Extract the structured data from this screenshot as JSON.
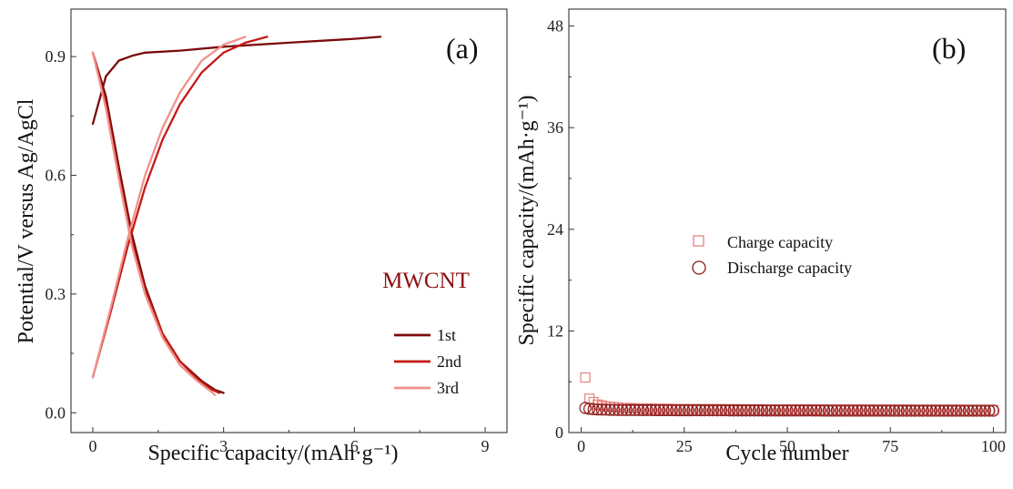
{
  "figure": {
    "panels": [
      "(a)",
      "(b)"
    ]
  },
  "colors": {
    "cycle_1": "#7a0b0b",
    "cycle_2": "#c41a14",
    "cycle_3": "#f0908a",
    "charge": "#e8837e",
    "discharge": "#8b1b1b",
    "annotation": "#8b1010",
    "axis": "#333333"
  },
  "chart_data": [
    {
      "type": "line",
      "panel_label": "(a)",
      "title": "",
      "xlabel": "Specific capacity/(mAh·g⁻¹)",
      "ylabel": "Potential/V versus Ag/AgCl",
      "xlim": [
        -0.5,
        9.5
      ],
      "ylim": [
        -0.05,
        1.02
      ],
      "xticks": [
        0,
        3,
        6,
        9
      ],
      "yticks": [
        0.0,
        0.3,
        0.6,
        0.9
      ],
      "xtick_labels": [
        "0",
        "3",
        "6",
        "9"
      ],
      "ytick_labels": [
        "0.0",
        "0.3",
        "0.6",
        "0.9"
      ],
      "grid": false,
      "annotation": "MWCNT",
      "legend_position": "lower-right",
      "series": [
        {
          "name": "1st",
          "color_key": "cycle_1",
          "segments": [
            {
              "x": [
                0.0,
                0.3,
                0.6,
                0.9,
                1.2,
                2.0,
                3.0,
                4.5,
                6.0,
                6.6
              ],
              "y": [
                0.73,
                0.85,
                0.89,
                0.902,
                0.91,
                0.915,
                0.925,
                0.935,
                0.945,
                0.95
              ]
            },
            {
              "x": [
                0.0,
                0.3,
                0.6,
                0.9,
                1.2,
                1.6,
                2.0,
                2.5,
                2.8,
                3.0
              ],
              "y": [
                0.91,
                0.8,
                0.62,
                0.45,
                0.32,
                0.2,
                0.13,
                0.08,
                0.058,
                0.05
              ]
            }
          ]
        },
        {
          "name": "2nd",
          "color_key": "cycle_2",
          "segments": [
            {
              "x": [
                0.0,
                0.4,
                0.8,
                1.2,
                1.6,
                2.0,
                2.5,
                3.0,
                3.5,
                4.0
              ],
              "y": [
                0.09,
                0.25,
                0.42,
                0.57,
                0.69,
                0.78,
                0.86,
                0.91,
                0.935,
                0.95
              ]
            },
            {
              "x": [
                0.0,
                0.3,
                0.6,
                0.9,
                1.2,
                1.6,
                2.0,
                2.4,
                2.7,
                2.9
              ],
              "y": [
                0.91,
                0.78,
                0.6,
                0.43,
                0.31,
                0.2,
                0.13,
                0.085,
                0.06,
                0.05
              ]
            }
          ]
        },
        {
          "name": "3rd",
          "color_key": "cycle_3",
          "segments": [
            {
              "x": [
                0.0,
                0.4,
                0.8,
                1.2,
                1.6,
                2.0,
                2.5,
                3.0,
                3.5
              ],
              "y": [
                0.09,
                0.26,
                0.44,
                0.6,
                0.72,
                0.81,
                0.89,
                0.93,
                0.95
              ]
            },
            {
              "x": [
                0.0,
                0.3,
                0.6,
                0.9,
                1.2,
                1.6,
                2.0,
                2.4,
                2.7,
                2.8
              ],
              "y": [
                0.91,
                0.77,
                0.59,
                0.42,
                0.3,
                0.19,
                0.12,
                0.08,
                0.055,
                0.045
              ]
            }
          ]
        }
      ]
    },
    {
      "type": "scatter",
      "panel_label": "(b)",
      "title": "",
      "xlabel": "Cycle number",
      "ylabel": "Specific capacity/(mAh·g⁻¹)",
      "xlim": [
        -3,
        103
      ],
      "ylim": [
        0,
        50
      ],
      "xticks": [
        0,
        25,
        50,
        75,
        100
      ],
      "yticks": [
        0,
        12,
        24,
        36,
        48
      ],
      "xtick_labels": [
        "0",
        "25",
        "50",
        "75",
        "100"
      ],
      "ytick_labels": [
        "0",
        "12",
        "24",
        "36",
        "48"
      ],
      "grid": false,
      "legend_position": "center",
      "series": [
        {
          "name": "Charge capacity",
          "marker": "square",
          "color_key": "charge",
          "x_start": 1,
          "x_step": 1,
          "values": [
            6.5,
            4.0,
            3.6,
            3.3,
            3.2,
            3.1,
            3.05,
            3.0,
            2.95,
            2.9,
            2.9,
            2.88,
            2.86,
            2.85,
            2.84,
            2.83,
            2.82,
            2.81,
            2.8,
            2.8,
            2.8,
            2.79,
            2.79,
            2.78,
            2.78,
            2.78,
            2.77,
            2.77,
            2.77,
            2.76,
            2.76,
            2.76,
            2.76,
            2.75,
            2.75,
            2.75,
            2.75,
            2.75,
            2.74,
            2.74,
            2.74,
            2.74,
            2.74,
            2.74,
            2.73,
            2.73,
            2.73,
            2.73,
            2.73,
            2.73,
            2.73,
            2.72,
            2.72,
            2.72,
            2.72,
            2.72,
            2.72,
            2.72,
            2.72,
            2.71,
            2.71,
            2.71,
            2.71,
            2.71,
            2.71,
            2.71,
            2.71,
            2.71,
            2.7,
            2.7,
            2.7,
            2.7,
            2.7,
            2.7,
            2.7,
            2.7,
            2.7,
            2.7,
            2.7,
            2.7,
            2.69,
            2.69,
            2.69,
            2.69,
            2.69,
            2.69,
            2.69,
            2.69,
            2.69,
            2.69,
            2.69,
            2.69,
            2.68,
            2.68,
            2.68,
            2.68,
            2.68,
            2.68,
            2.68,
            2.68
          ]
        },
        {
          "name": "Discharge capacity",
          "marker": "circle",
          "color_key": "discharge",
          "x_start": 1,
          "x_step": 1,
          "values": [
            2.9,
            2.8,
            2.75,
            2.72,
            2.7,
            2.7,
            2.68,
            2.68,
            2.67,
            2.67,
            2.66,
            2.66,
            2.66,
            2.65,
            2.65,
            2.65,
            2.65,
            2.64,
            2.64,
            2.64,
            2.64,
            2.64,
            2.63,
            2.63,
            2.63,
            2.63,
            2.63,
            2.63,
            2.62,
            2.62,
            2.62,
            2.62,
            2.62,
            2.62,
            2.62,
            2.61,
            2.61,
            2.61,
            2.61,
            2.61,
            2.61,
            2.61,
            2.61,
            2.61,
            2.6,
            2.6,
            2.6,
            2.6,
            2.6,
            2.6,
            2.6,
            2.6,
            2.6,
            2.6,
            2.6,
            2.6,
            2.6,
            2.6,
            2.59,
            2.59,
            2.59,
            2.59,
            2.59,
            2.59,
            2.59,
            2.59,
            2.59,
            2.59,
            2.59,
            2.59,
            2.59,
            2.59,
            2.59,
            2.59,
            2.58,
            2.58,
            2.58,
            2.58,
            2.58,
            2.58,
            2.58,
            2.58,
            2.58,
            2.58,
            2.58,
            2.58,
            2.58,
            2.58,
            2.58,
            2.58,
            2.58,
            2.58,
            2.58,
            2.58,
            2.58,
            2.58,
            2.58,
            2.58,
            2.58,
            2.58
          ]
        }
      ]
    }
  ]
}
